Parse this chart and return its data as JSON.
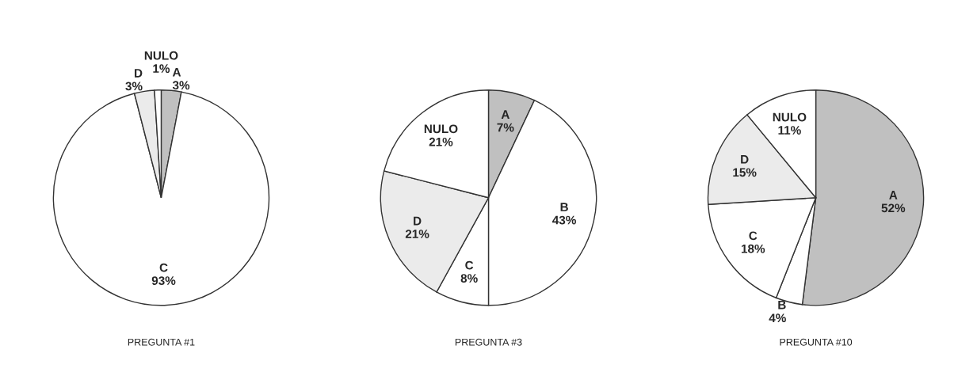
{
  "chart_data": [
    {
      "type": "pie",
      "title": "PREGUNTA #1",
      "categories": [
        "A",
        "C",
        "D",
        "NULO"
      ],
      "values": [
        3,
        93,
        3,
        1
      ],
      "value_labels": [
        "3%",
        "93%",
        "3%",
        "1%"
      ],
      "colors": [
        "#c0c0c0",
        "#ffffff",
        "#ebebeb",
        "#ffffff"
      ],
      "legend": false
    },
    {
      "type": "pie",
      "title": "PREGUNTA #3",
      "categories": [
        "A",
        "B",
        "C",
        "D",
        "NULO"
      ],
      "values": [
        7,
        43,
        8,
        21,
        21
      ],
      "value_labels": [
        "7%",
        "43%",
        "8%",
        "21%",
        "21%"
      ],
      "colors": [
        "#c0c0c0",
        "#ffffff",
        "#ffffff",
        "#ebebeb",
        "#ffffff"
      ],
      "legend": false
    },
    {
      "type": "pie",
      "title": "PREGUNTA #10",
      "categories": [
        "A",
        "B",
        "C",
        "D",
        "NULO"
      ],
      "values": [
        52,
        4,
        18,
        15,
        11
      ],
      "value_labels": [
        "52%",
        "4%",
        "18%",
        "15%",
        "11%"
      ],
      "colors": [
        "#c0c0c0",
        "#ffffff",
        "#ffffff",
        "#ebebeb",
        "#ffffff"
      ],
      "legend": false
    }
  ]
}
